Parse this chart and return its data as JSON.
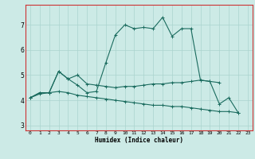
{
  "xlabel": "Humidex (Indice chaleur)",
  "bg_color": "#cceae6",
  "line_color": "#1a6b5e",
  "grid_color": "#aad4ce",
  "spine_color": "#cc3333",
  "xlim": [
    -0.5,
    23.5
  ],
  "ylim": [
    2.8,
    7.8
  ],
  "yticks": [
    3,
    4,
    5,
    6,
    7
  ],
  "xticks": [
    0,
    1,
    2,
    3,
    4,
    5,
    6,
    7,
    8,
    9,
    10,
    11,
    12,
    13,
    14,
    15,
    16,
    17,
    18,
    19,
    20,
    21,
    22,
    23
  ],
  "series": [
    {
      "x": [
        0,
        1,
        2,
        3,
        4,
        5,
        6,
        7,
        8,
        9,
        10,
        11,
        12,
        13,
        14,
        15,
        16,
        17,
        18,
        19,
        20,
        21,
        22
      ],
      "y": [
        4.1,
        4.3,
        4.3,
        5.15,
        4.85,
        4.6,
        4.3,
        4.35,
        5.5,
        6.6,
        7.0,
        6.85,
        6.9,
        6.85,
        7.3,
        6.55,
        6.85,
        6.85,
        4.8,
        4.75,
        3.85,
        4.1,
        3.5
      ]
    },
    {
      "x": [
        0,
        1,
        2,
        3,
        4,
        5,
        6,
        7,
        8,
        9,
        10,
        11,
        12,
        13,
        14,
        15,
        16,
        17,
        18,
        19,
        20
      ],
      "y": [
        4.1,
        4.3,
        4.3,
        5.15,
        4.85,
        5.0,
        4.65,
        4.6,
        4.55,
        4.5,
        4.55,
        4.55,
        4.6,
        4.65,
        4.65,
        4.7,
        4.7,
        4.75,
        4.8,
        4.75,
        4.7
      ]
    },
    {
      "x": [
        0,
        1,
        2,
        3,
        4,
        5,
        6,
        7,
        8,
        9,
        10,
        11,
        12,
        13,
        14,
        15,
        16,
        17,
        18,
        19,
        20,
        21,
        22
      ],
      "y": [
        4.1,
        4.25,
        4.3,
        4.35,
        4.3,
        4.2,
        4.15,
        4.1,
        4.05,
        4.0,
        3.95,
        3.9,
        3.85,
        3.8,
        3.8,
        3.75,
        3.75,
        3.7,
        3.65,
        3.6,
        3.55,
        3.55,
        3.5
      ]
    }
  ]
}
